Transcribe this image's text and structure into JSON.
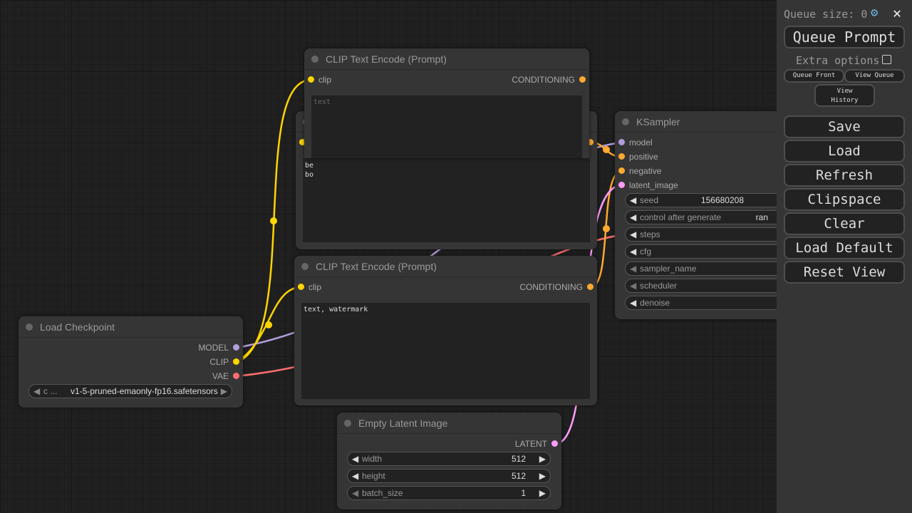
{
  "sidebar": {
    "queue_size_label": "Queue size: 0",
    "queue_prompt": "Queue Prompt",
    "extra_options": "Extra options",
    "queue_front": "Queue Front",
    "view_queue": "View Queue",
    "view_history": "View History",
    "save": "Save",
    "load": "Load",
    "refresh": "Refresh",
    "clipspace": "Clipspace",
    "clear": "Clear",
    "load_default": "Load Default",
    "reset_view": "Reset View",
    "settings_icon": "gear-icon",
    "close_icon": "close-icon"
  },
  "nodes": {
    "clip_top": {
      "title": "CLIP Text Encode (Prompt)",
      "input": "clip",
      "output": "CONDITIONING",
      "placeholder": "text"
    },
    "clip_hidden": {
      "text": "be\nbo"
    },
    "clip_bottom": {
      "title": "CLIP Text Encode (Prompt)",
      "input": "clip",
      "output": "CONDITIONING",
      "text": "text, watermark"
    },
    "ksampler": {
      "title": "KSampler",
      "inputs": [
        "model",
        "positive",
        "negative",
        "latent_image"
      ],
      "widgets": [
        {
          "name": "seed",
          "value": "156680208"
        },
        {
          "name": "control after generate",
          "value": "ran"
        },
        {
          "name": "steps",
          "value": ""
        },
        {
          "name": "cfg",
          "value": ""
        },
        {
          "name": "sampler_name",
          "value": ""
        },
        {
          "name": "scheduler",
          "value": ""
        },
        {
          "name": "denoise",
          "value": ""
        }
      ]
    },
    "checkpoint": {
      "title": "Load Checkpoint",
      "outputs": [
        "MODEL",
        "CLIP",
        "VAE"
      ],
      "widget_name": "c ...",
      "widget_value": "v1-5-pruned-emaonly-fp16.safetensors"
    },
    "latent": {
      "title": "Empty Latent Image",
      "output": "LATENT",
      "widgets": [
        {
          "name": "width",
          "value": "512"
        },
        {
          "name": "height",
          "value": "512"
        },
        {
          "name": "batch_size",
          "value": "1"
        }
      ]
    }
  },
  "colors": {
    "model": "#b39ddb",
    "clip": "#ffd500",
    "vae": "#ff6e6e",
    "conditioning": "#ffa931",
    "latent": "#ff9cf9"
  }
}
